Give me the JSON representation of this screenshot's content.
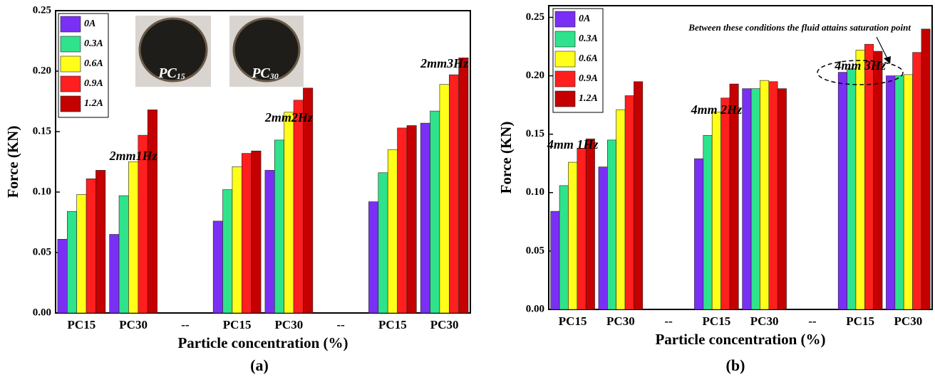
{
  "chart_data": [
    {
      "type": "bar",
      "caption": "(a)",
      "y_label": "Force (KN)",
      "x_label": "Particle concentration (%)",
      "categories": [
        "PC15",
        "PC30",
        "--",
        "PC15",
        "PC30",
        "--",
        "PC15",
        "PC30"
      ],
      "series": [
        {
          "name": "0A",
          "color": "#7a2ff5",
          "values": [
            0.061,
            0.065,
            null,
            0.076,
            0.118,
            null,
            0.092,
            0.157
          ]
        },
        {
          "name": "0.3A",
          "color": "#2ee38c",
          "values": [
            0.084,
            0.097,
            null,
            0.102,
            0.143,
            null,
            0.116,
            0.167
          ]
        },
        {
          "name": "0.6A",
          "color": "#ffff1a",
          "values": [
            0.098,
            0.125,
            null,
            0.121,
            0.166,
            null,
            0.135,
            0.189
          ]
        },
        {
          "name": "0.9A",
          "color": "#ff1f1f",
          "values": [
            0.111,
            0.147,
            null,
            0.132,
            0.176,
            null,
            0.153,
            0.197
          ]
        },
        {
          "name": "1.2A",
          "color": "#c40000",
          "values": [
            0.118,
            0.168,
            null,
            0.134,
            0.186,
            null,
            0.155,
            0.211
          ]
        }
      ],
      "ylim": [
        0,
        0.25
      ],
      "yticks": [
        {
          "value": 0,
          "label": "0.00"
        },
        {
          "value": 0.05,
          "label": "0.05"
        },
        {
          "value": 0.1,
          "label": "0.10"
        },
        {
          "value": 0.15,
          "label": "0.15"
        },
        {
          "value": 0.2,
          "label": "0.20"
        },
        {
          "value": 0.25,
          "label": "0.25"
        }
      ],
      "legend": "upper left",
      "annotations": [
        "2mm1Hz",
        "2mm2Hz",
        "2mm3Hz"
      ],
      "image_labels": [
        {
          "main": "PC",
          "sub": "15"
        },
        {
          "main": "PC",
          "sub": "30"
        }
      ]
    },
    {
      "type": "bar",
      "caption": "(b)",
      "y_label": "Force (KN)",
      "x_label": "Particle concentration (%)",
      "categories": [
        "PC15",
        "PC30",
        "--",
        "PC15",
        "PC30",
        "--",
        "PC15",
        "PC30"
      ],
      "series": [
        {
          "name": "0A",
          "color": "#7a2ff5",
          "values": [
            0.084,
            0.122,
            null,
            0.129,
            0.189,
            null,
            0.203,
            0.2
          ]
        },
        {
          "name": "0.3A",
          "color": "#2ee38c",
          "values": [
            0.106,
            0.145,
            null,
            0.149,
            0.189,
            null,
            0.206,
            0.2
          ]
        },
        {
          "name": "0.6A",
          "color": "#ffff1a",
          "values": [
            0.126,
            0.171,
            null,
            0.169,
            0.196,
            null,
            0.222,
            0.201
          ]
        },
        {
          "name": "0.9A",
          "color": "#ff1f1f",
          "values": [
            0.138,
            0.183,
            null,
            0.181,
            0.195,
            null,
            0.227,
            0.22
          ]
        },
        {
          "name": "1.2A",
          "color": "#c40000",
          "values": [
            0.146,
            0.195,
            null,
            0.193,
            0.189,
            null,
            0.221,
            0.24
          ]
        }
      ],
      "ylim": [
        0,
        0.26
      ],
      "yticks": [
        {
          "value": 0,
          "label": "0.00"
        },
        {
          "value": 0.05,
          "label": "0.05"
        },
        {
          "value": 0.1,
          "label": "0.10"
        },
        {
          "value": 0.15,
          "label": "0.15"
        },
        {
          "value": 0.2,
          "label": "0.20"
        },
        {
          "value": 0.25,
          "label": "0.25"
        }
      ],
      "legend": "upper left",
      "annotations": [
        "4mm 1Hz",
        "4mm 2Hz",
        "4mm 3Hz",
        "Between these conditions the fluid attains saturation point"
      ]
    }
  ]
}
